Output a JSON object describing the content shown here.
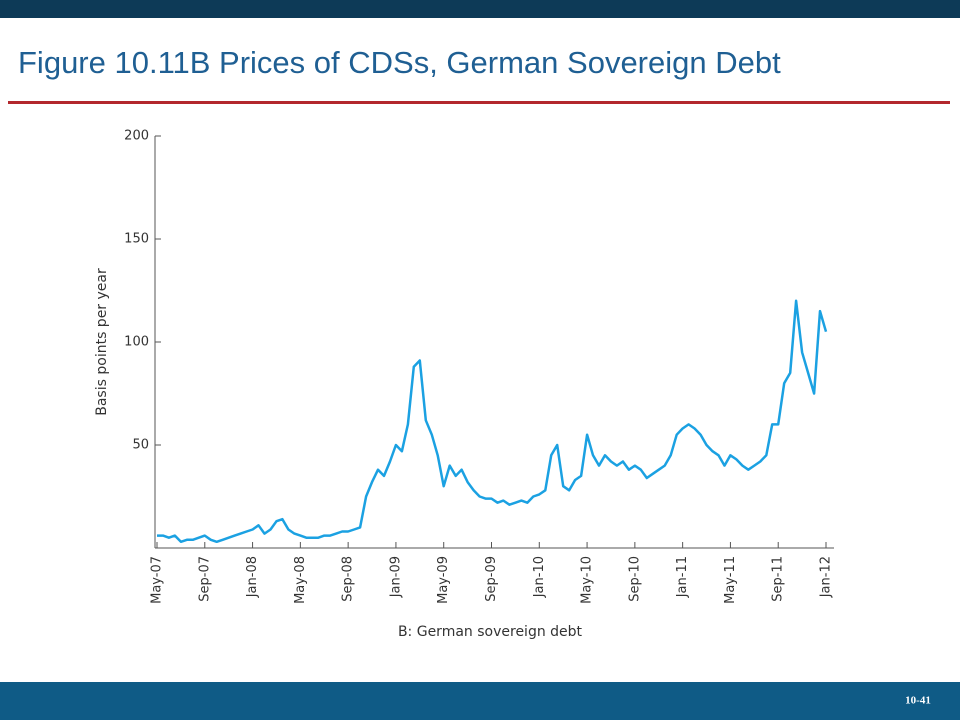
{
  "slide": {
    "title": "Figure 10.11B Prices of CDSs, German Sovereign Debt",
    "page_number": "10-41"
  },
  "chart_data": {
    "type": "line",
    "xlabel": "B: German sovereign debt",
    "ylabel": "Basis points per year",
    "color": "#1ba1e2",
    "x": [
      0,
      0.5,
      1,
      1.5,
      2,
      2.5,
      3,
      3.5,
      4,
      4.5,
      5,
      5.5,
      6,
      6.5,
      7,
      7.5,
      8,
      8.5,
      9,
      9.5,
      10,
      10.5,
      11,
      11.5,
      12,
      12.5,
      13,
      13.5,
      14,
      14.5,
      15,
      15.5,
      16,
      16.5,
      17,
      17.5,
      18,
      18.5,
      19,
      19.5,
      20,
      20.5,
      21,
      21.5,
      22,
      22.5,
      23,
      23.5,
      24,
      24.5,
      25,
      25.5,
      26,
      26.5,
      27,
      27.5,
      28,
      28.5,
      29,
      29.5,
      30,
      30.5,
      31,
      31.5,
      32,
      32.5,
      33,
      33.5,
      34,
      34.5,
      35,
      35.5,
      36,
      36.5,
      37,
      37.5,
      38,
      38.5,
      39,
      39.5,
      40,
      40.5,
      41,
      41.5,
      42,
      42.5,
      43,
      43.5,
      44,
      44.5,
      45,
      45.5,
      46,
      46.5,
      47,
      47.5,
      48,
      48.5,
      49,
      49.5,
      50,
      50.5,
      51,
      51.5,
      52,
      52.5,
      53,
      53.5,
      54,
      54.5,
      55,
      55.5,
      56
    ],
    "values": [
      6,
      6,
      5,
      6,
      3,
      4,
      4,
      5,
      6,
      4,
      3,
      4,
      5,
      6,
      7,
      8,
      9,
      11,
      7,
      9,
      13,
      14,
      9,
      7,
      6,
      5,
      5,
      5,
      6,
      6,
      7,
      8,
      8,
      9,
      10,
      25,
      32,
      38,
      35,
      42,
      50,
      47,
      60,
      88,
      91,
      62,
      55,
      45,
      30,
      40,
      35,
      38,
      32,
      28,
      25,
      24,
      24,
      22,
      23,
      21,
      22,
      23,
      22,
      25,
      26,
      28,
      45,
      50,
      30,
      28,
      33,
      35,
      55,
      45,
      40,
      45,
      42,
      40,
      42,
      38,
      40,
      38,
      34,
      36,
      38,
      40,
      45,
      55,
      58,
      60,
      58,
      55,
      50,
      47,
      45,
      40,
      45,
      43,
      40,
      38,
      40,
      42,
      45,
      60,
      60,
      80,
      85,
      120,
      95,
      85,
      75,
      115,
      105
    ],
    "xlim": [
      0,
      56
    ],
    "xticks": [
      {
        "value": 0,
        "label": "May-07"
      },
      {
        "value": 4,
        "label": "Sep-07"
      },
      {
        "value": 8,
        "label": "Jan-08"
      },
      {
        "value": 12,
        "label": "May-08"
      },
      {
        "value": 16,
        "label": "Sep-08"
      },
      {
        "value": 20,
        "label": "Jan-09"
      },
      {
        "value": 24,
        "label": "May-09"
      },
      {
        "value": 28,
        "label": "Sep-09"
      },
      {
        "value": 32,
        "label": "Jan-10"
      },
      {
        "value": 36,
        "label": "May-10"
      },
      {
        "value": 40,
        "label": "Sep-10"
      },
      {
        "value": 44,
        "label": "Jan-11"
      },
      {
        "value": 48,
        "label": "May-11"
      },
      {
        "value": 52,
        "label": "Sep-11"
      },
      {
        "value": 56,
        "label": "Jan-12"
      }
    ],
    "ylim": [
      0,
      200
    ],
    "yticks": [
      50,
      100,
      150,
      200
    ]
  }
}
